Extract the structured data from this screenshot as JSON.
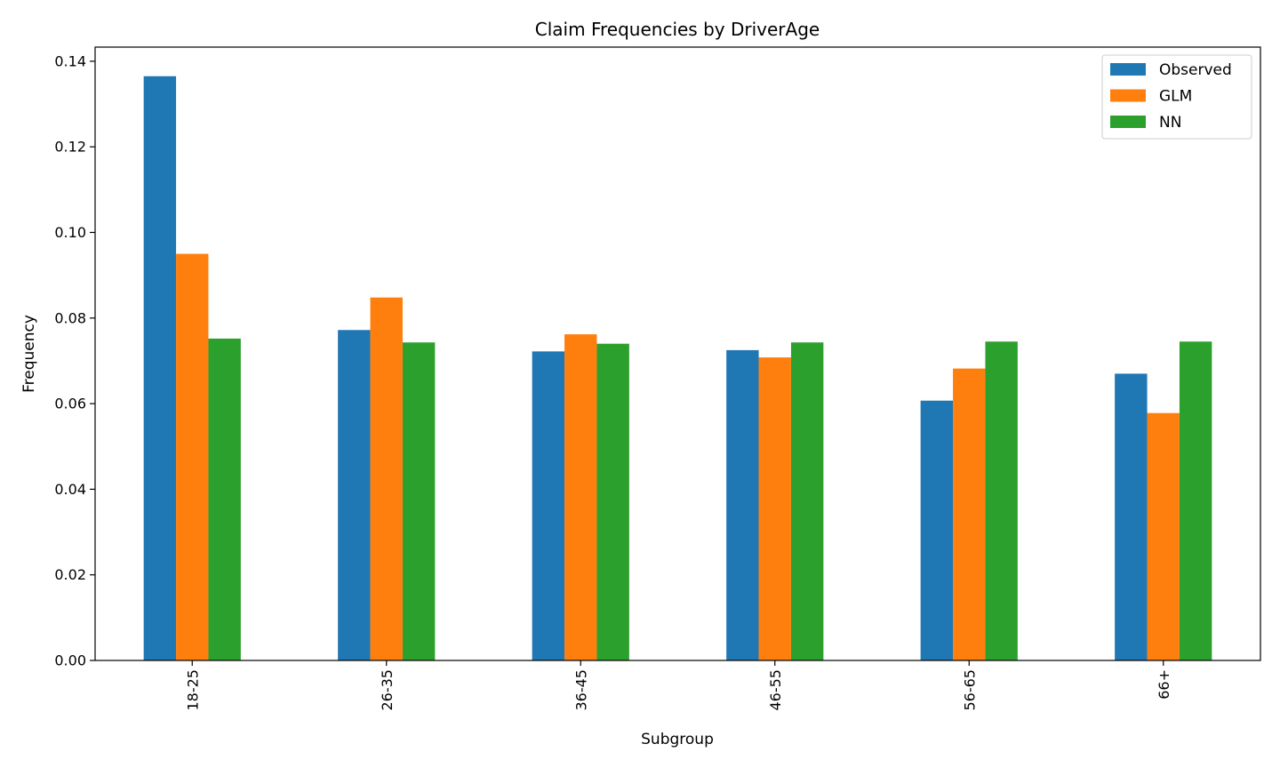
{
  "chart_data": {
    "type": "bar",
    "title": "Claim Frequencies by DriverAge",
    "xlabel": "Subgroup",
    "ylabel": "Frequency",
    "categories": [
      "18-25",
      "26-35",
      "36-45",
      "46-55",
      "56-65",
      "66+"
    ],
    "series": [
      {
        "name": "Observed",
        "color": "#1f77b4",
        "values": [
          0.1365,
          0.0772,
          0.0722,
          0.0725,
          0.0607,
          0.067
        ]
      },
      {
        "name": "GLM",
        "color": "#ff7f0e",
        "values": [
          0.095,
          0.0848,
          0.0762,
          0.0708,
          0.0682,
          0.0578
        ]
      },
      {
        "name": "NN",
        "color": "#2ca02c",
        "values": [
          0.0752,
          0.0743,
          0.074,
          0.0743,
          0.0745,
          0.0745
        ]
      }
    ],
    "ylim": [
      0,
      0.1433
    ],
    "yticks": [
      0.0,
      0.02,
      0.04,
      0.06,
      0.08,
      0.1,
      0.12,
      0.14
    ],
    "ytick_labels": [
      "0.00",
      "0.02",
      "0.04",
      "0.06",
      "0.08",
      "0.10",
      "0.12",
      "0.14"
    ],
    "legend_position": "top-right",
    "grid": false
  }
}
